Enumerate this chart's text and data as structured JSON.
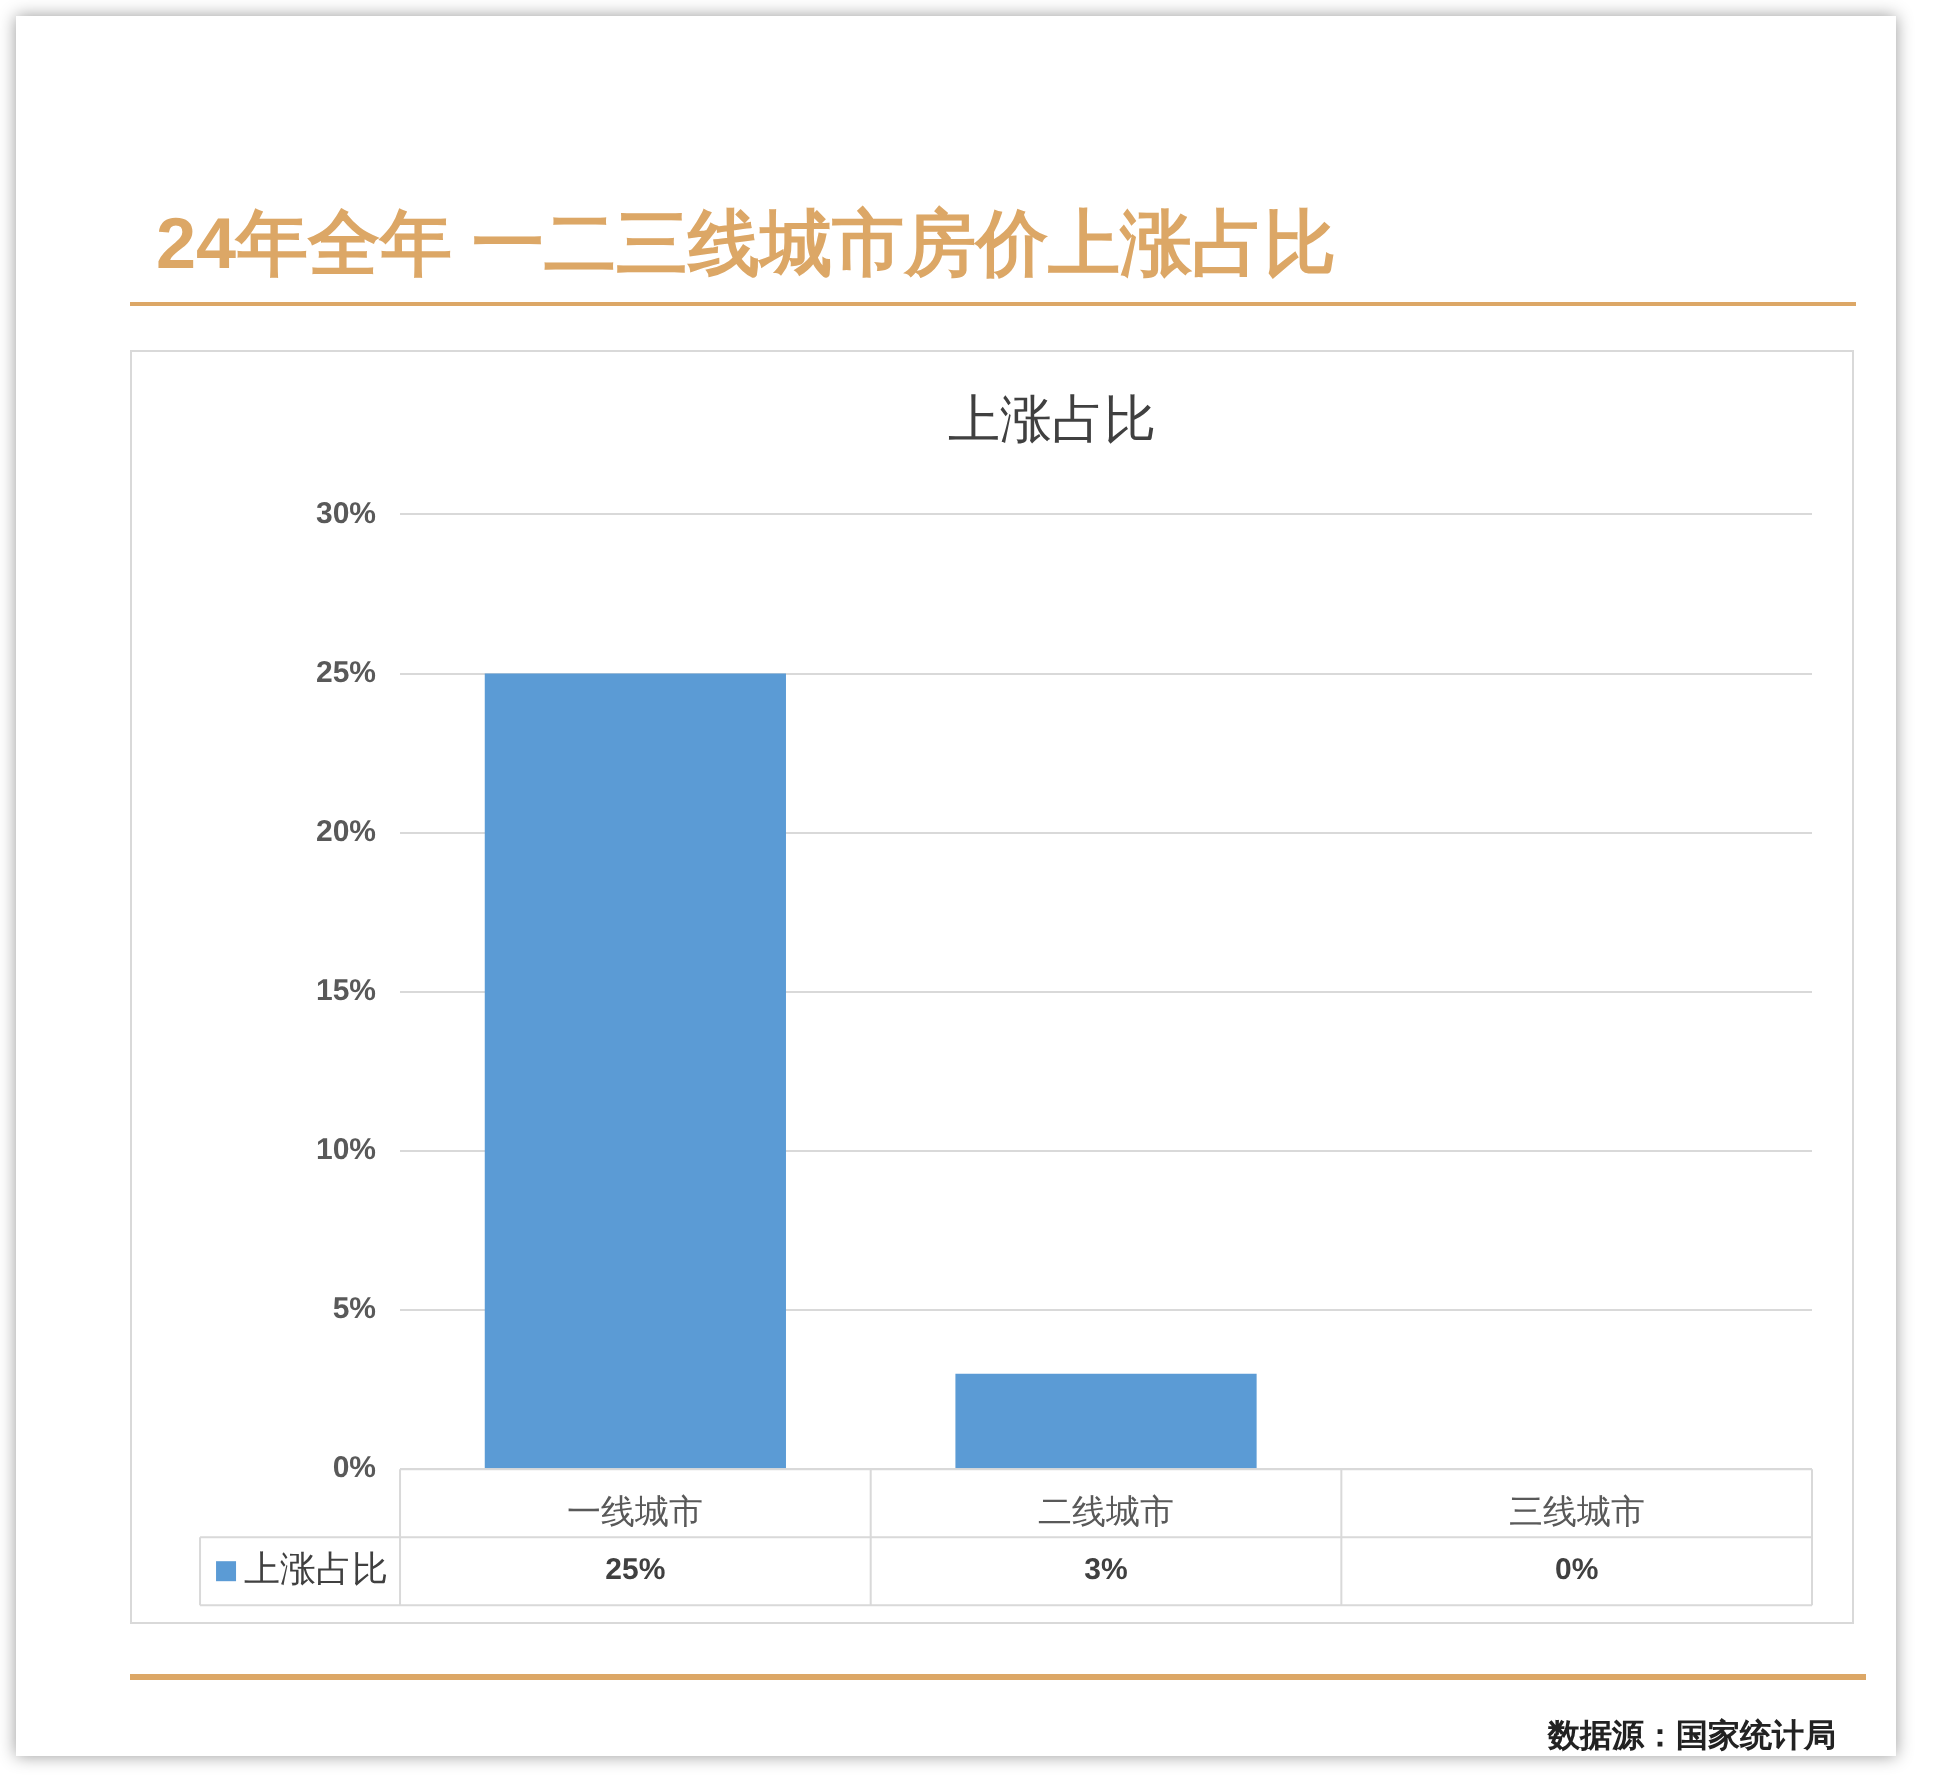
{
  "chart_data": {
    "type": "bar",
    "title": "24年全年 一二三线城市房价上涨占比",
    "subtitle": "上涨占比",
    "categories": [
      "一线城市",
      "二线城市",
      "三线城市"
    ],
    "series": [
      {
        "name": "上涨占比",
        "color": "#5b9bd5",
        "values": [
          25,
          3,
          0
        ],
        "value_labels": [
          "25%",
          "3%",
          "0%"
        ]
      }
    ],
    "ylim": [
      0,
      30
    ],
    "yticks": [
      {
        "value": 0,
        "label": "0%"
      },
      {
        "value": 5,
        "label": "5%"
      },
      {
        "value": 10,
        "label": "10%"
      },
      {
        "value": 15,
        "label": "15%"
      },
      {
        "value": 20,
        "label": "20%"
      },
      {
        "value": 25,
        "label": "25%"
      },
      {
        "value": 30,
        "label": "30%"
      }
    ],
    "grid": "y",
    "legend": "bottom",
    "annotations": [
      "数据源：国家统计局"
    ]
  }
}
